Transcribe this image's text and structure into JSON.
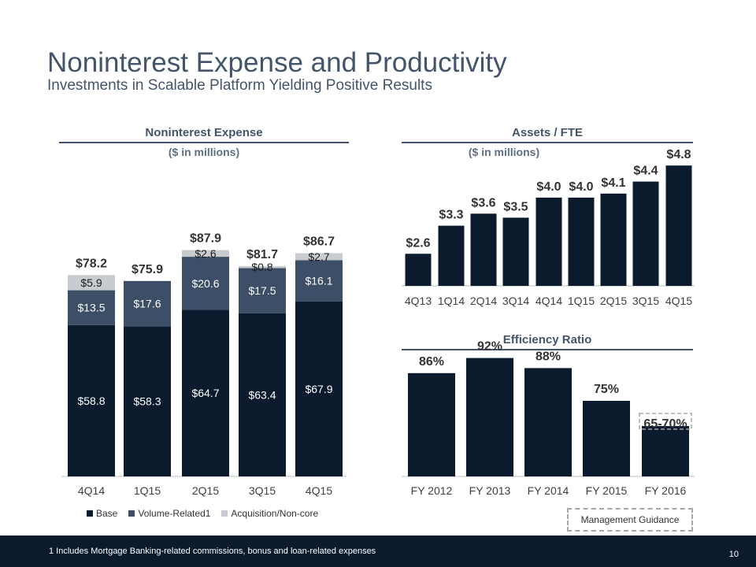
{
  "slide": {
    "title": "Noninterest Expense and Productivity",
    "subtitle": "Investments in Scalable Platform Yielding Positive Results",
    "footnote": "1  Includes Mortgage Banking-related commissions, bonus and loan-related expenses",
    "page_number": "10",
    "management_guidance_label": "Management Guidance"
  },
  "colors": {
    "base": "#0c1a2e",
    "volume": "#3d4f66",
    "acquisition": "#c8cbcf",
    "label_light": "#ffffff",
    "label_dark": "#1a1a1a"
  },
  "chart_data": [
    {
      "type": "bar",
      "stacked": true,
      "title": "Noninterest Expense",
      "subtitle": "($ in millions)",
      "categories": [
        "4Q14",
        "1Q15",
        "2Q15",
        "3Q15",
        "4Q15"
      ],
      "series": [
        {
          "name": "Base",
          "values": [
            58.8,
            58.3,
            64.7,
            63.4,
            67.9
          ]
        },
        {
          "name": "Volume-Related1",
          "values": [
            13.5,
            17.6,
            20.6,
            17.5,
            16.1
          ]
        },
        {
          "name": "Acquisition/Non-core",
          "values": [
            5.9,
            0,
            2.6,
            0.8,
            2.7
          ]
        }
      ],
      "segment_labels": [
        [
          "$58.8",
          "$58.3",
          "$64.7",
          "$63.4",
          "$67.9"
        ],
        [
          "$13.5",
          "$17.6",
          "$20.6",
          "$17.5",
          "$16.1"
        ],
        [
          "$5.9",
          "",
          "$2.6",
          "$0.8",
          "$2.7"
        ]
      ],
      "totals": [
        78.2,
        75.9,
        87.9,
        81.7,
        86.7
      ],
      "total_labels": [
        "$78.2",
        "$75.9",
        "$87.9",
        "$81.7",
        "$86.7"
      ],
      "ylim": [
        0,
        95
      ],
      "legend": "bottom",
      "grid": false
    },
    {
      "type": "bar",
      "title": "Assets / FTE",
      "subtitle": "($ in millions)",
      "categories": [
        "4Q13",
        "1Q14",
        "2Q14",
        "3Q14",
        "4Q14",
        "1Q15",
        "2Q15",
        "3Q15",
        "4Q15"
      ],
      "values": [
        2.6,
        3.3,
        3.6,
        3.5,
        4.0,
        4.0,
        4.1,
        4.4,
        4.8
      ],
      "value_labels": [
        "$2.6",
        "$3.3",
        "$3.6",
        "$3.5",
        "$4.0",
        "$4.0",
        "$4.1",
        "$4.4",
        "$4.8"
      ],
      "ylim": [
        1.8,
        5.0
      ],
      "grid": false
    },
    {
      "type": "bar",
      "title": "Efficiency Ratio",
      "categories": [
        "FY 2012",
        "FY 2013",
        "FY 2014",
        "FY 2015",
        "FY 2016"
      ],
      "values": [
        86,
        92,
        88,
        75,
        65
      ],
      "value_labels": [
        "86%",
        "92%",
        "88%",
        "75%",
        "65-70%"
      ],
      "guidance_range": [
        65,
        70
      ],
      "ylim": [
        45,
        95
      ],
      "grid": false
    }
  ]
}
